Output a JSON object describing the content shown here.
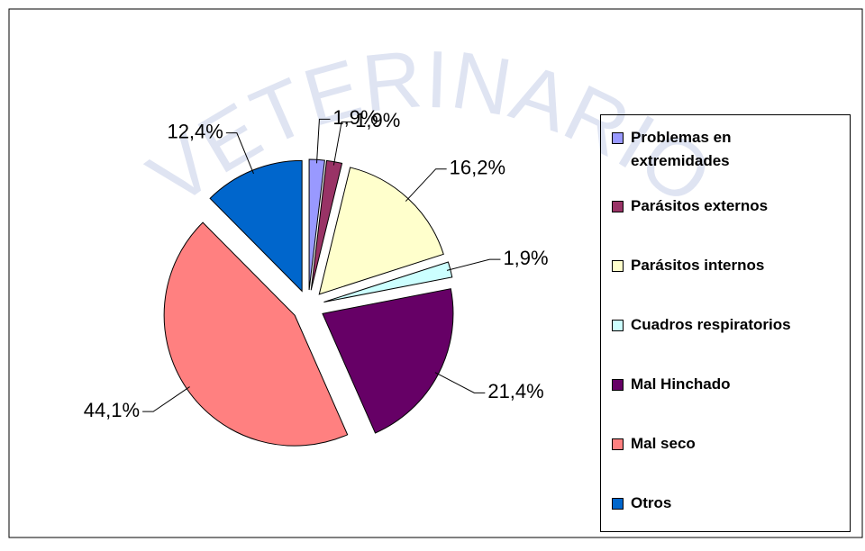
{
  "chart_data": {
    "type": "pie",
    "watermark": "VETERINARIO",
    "categories": [
      "Problemas en extremidades",
      "Parásitos externos",
      "Parásitos internos",
      "Cuadros respiratorios",
      "Mal Hinchado",
      "Mal seco",
      "Otros"
    ],
    "values": [
      1.9,
      1.9,
      16.2,
      1.9,
      21.4,
      44.1,
      12.4
    ],
    "value_labels": [
      "1,9%",
      "1,9%",
      "16,2%",
      "1,9%",
      "21,4%",
      "44,1%",
      "12,4%"
    ],
    "colors": [
      "#9999ff",
      "#993366",
      "#ffffcc",
      "#ccffff",
      "#660066",
      "#ff8080",
      "#0066cc"
    ],
    "legend": "right"
  }
}
